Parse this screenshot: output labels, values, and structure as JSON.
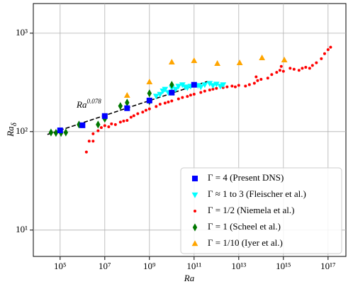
{
  "chart_data": {
    "type": "scatter",
    "xlabel": {
      "text": "Ra"
    },
    "ylabel": {
      "text": "Ra",
      "subscript": "δ"
    },
    "annotation": {
      "text": "Ra",
      "exponent": "0.078"
    },
    "log_x": true,
    "log_y": true,
    "grid": true,
    "legend": "lower right",
    "xlim": [
      6300,
      6.3e+17
    ],
    "ylim": [
      5.4,
      2000
    ],
    "xticks": [
      {
        "value": 100000.0,
        "label": "10⁵"
      },
      {
        "value": 10000000.0,
        "label": "10⁷"
      },
      {
        "value": 1000000000.0,
        "label": "10⁹"
      },
      {
        "value": 100000000000.0,
        "label": "10¹¹"
      },
      {
        "value": 10000000000000.0,
        "label": "10¹³"
      },
      {
        "value": 1000000000000000.0,
        "label": "10¹⁵"
      },
      {
        "value": 1e+17,
        "label": "10¹⁷"
      }
    ],
    "yticks": [
      {
        "value": 10,
        "label": "10¹"
      },
      {
        "value": 100,
        "label": "10²"
      },
      {
        "value": 1000,
        "label": "10³"
      }
    ],
    "fit": {
      "color": "#000000",
      "x": [
        27000,
        400000000000.0
      ],
      "values": [
        93.6,
        324
      ]
    },
    "series": [
      {
        "name": "Γ = 4 (Present DNS)",
        "color": "#0000ff",
        "marker": "square",
        "x": [
          100000.0,
          1000000.0,
          10000000.0,
          100000000.0,
          1000000000.0,
          10000000000.0,
          100000000000.0
        ],
        "values": [
          103,
          116,
          144,
          173,
          207,
          249,
          299
        ]
      },
      {
        "name": "Γ ≈ 1 to 3 (Fleischer et al.)",
        "color": "#00ffff",
        "marker": "triangle-down",
        "x": [
          2000000000.0,
          3000000000.0,
          4000000000.0,
          5000000000.0,
          7000000000.0,
          10000000000.0,
          15000000000.0,
          20000000000.0,
          30000000000.0,
          40000000000.0,
          50000000000.0,
          70000000000.0,
          150000000000.0,
          200000000000.0,
          300000000000.0,
          500000000000.0,
          700000000000.0,
          1000000000000.0,
          1500000000000.0,
          2000000000000.0
        ],
        "values": [
          230,
          240,
          260,
          270,
          250,
          280,
          270,
          290,
          300,
          285,
          280,
          290,
          295,
          285,
          300,
          310,
          295,
          305,
          290,
          300
        ]
      },
      {
        "name": "Γ = 1/2 (Niemela et al.)",
        "color": "#ff0000",
        "marker": "dot",
        "x": [
          1500000.0,
          2000000.0,
          3000000.0,
          3000000.0,
          5000000.0,
          7000000.0,
          10000000.0,
          15000000.0,
          20000000.0,
          30000000.0,
          50000000.0,
          70000000.0,
          100000000.0,
          150000000.0,
          200000000.0,
          300000000.0,
          500000000.0,
          700000000.0,
          1000000000.0,
          2000000000.0,
          3000000000.0,
          5000000000.0,
          7000000000.0,
          10000000000.0,
          20000000000.0,
          30000000000.0,
          50000000000.0,
          70000000000.0,
          100000000000.0,
          200000000000.0,
          300000000000.0,
          500000000000.0,
          700000000000.0,
          1000000000000.0,
          2000000000000.0,
          3000000000000.0,
          5000000000000.0,
          7000000000000.0,
          10000000000000.0,
          20000000000000.0,
          30000000000000.0,
          50000000000000.0,
          60000000000000.0,
          70000000000000.0,
          100000000000000.0,
          200000000000000.0,
          300000000000000.0,
          500000000000000.0,
          700000000000000.0,
          800000000000000.0,
          1000000000000000.0,
          2000000000000000.0,
          3000000000000000.0,
          5000000000000000.0,
          7000000000000000.0,
          1e+16,
          1.5e+16,
          2e+16,
          3e+16,
          5e+16,
          7e+16,
          1e+17,
          1.3e+17
        ],
        "values": [
          62,
          80,
          95,
          80,
          102,
          110,
          115,
          112,
          120,
          118,
          125,
          128,
          130,
          140,
          145,
          152,
          158,
          165,
          170,
          180,
          190,
          195,
          200,
          205,
          215,
          222,
          228,
          235,
          240,
          250,
          258,
          265,
          270,
          275,
          280,
          285,
          290,
          285,
          295,
          290,
          300,
          310,
          360,
          330,
          340,
          350,
          380,
          400,
          420,
          460,
          410,
          440,
          430,
          420,
          440,
          450,
          440,
          470,
          500,
          550,
          620,
          680,
          720
        ]
      },
      {
        "name": "Γ = 1 (Scheel et al.)",
        "color": "#007700",
        "marker": "diamond",
        "x": [
          39000,
          65000,
          110000,
          180000,
          700000,
          5000000.0,
          10000000.0,
          50000000.0,
          100000000.0,
          1000000000.0,
          1000000000.0,
          10000000000.0
        ],
        "values": [
          98,
          97,
          97,
          98,
          118,
          118,
          135,
          182,
          197,
          245,
          204,
          299
        ]
      },
      {
        "name": "Γ = 1/10 (Iyer et al.)",
        "color": "#ffa500",
        "marker": "triangle",
        "x": [
          100000000.0,
          1000000000.0,
          10000000000.0,
          100000000000.0,
          1100000000000.0,
          11000000000000.0,
          110000000000000.0,
          1100000000000000.0
        ],
        "values": [
          233,
          319,
          507,
          524,
          491,
          499,
          560,
          533
        ]
      }
    ]
  }
}
